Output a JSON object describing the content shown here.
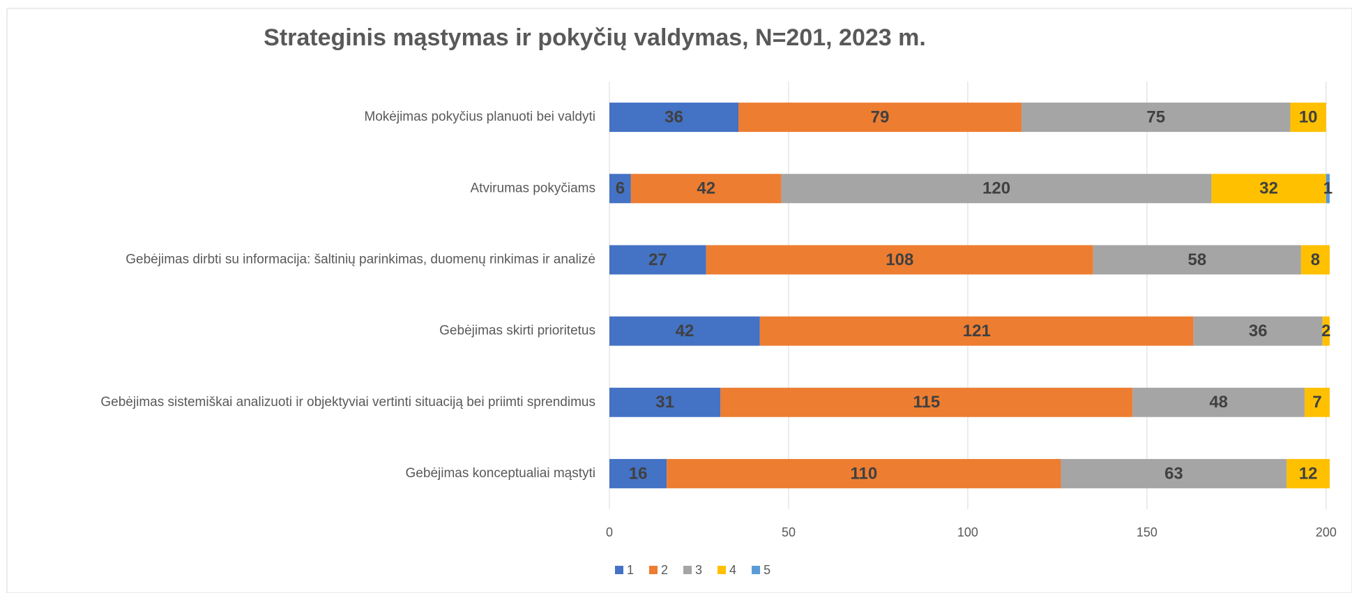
{
  "chart_data": {
    "type": "stacked_barh",
    "title": "Strateginis mąstymas ir pokyčių valdymas, N=201, 2023 m.",
    "categories": [
      "Mokėjimas pokyčius planuoti bei valdyti",
      "Atvirumas pokyčiams",
      "Gebėjimas dirbti su informacija: šaltinių parinkimas, duomenų rinkimas ir analizė",
      "Gebėjimas skirti prioritetus",
      "Gebėjimas sistemiškai analizuoti ir objektyviai vertinti situaciją bei priimti sprendimus",
      "Gebėjimas konceptualiai mąstyti"
    ],
    "series": [
      {
        "name": "1",
        "color": "#4472c4",
        "values": [
          36,
          6,
          27,
          42,
          31,
          16
        ]
      },
      {
        "name": "2",
        "color": "#ed7d31",
        "values": [
          79,
          42,
          108,
          121,
          115,
          110
        ]
      },
      {
        "name": "3",
        "color": "#a5a5a5",
        "values": [
          75,
          120,
          58,
          36,
          48,
          63
        ]
      },
      {
        "name": "4",
        "color": "#ffc000",
        "values": [
          10,
          32,
          8,
          2,
          7,
          12
        ]
      },
      {
        "name": "5",
        "color": "#5b9bd5",
        "values": [
          null,
          1,
          null,
          null,
          null,
          null
        ]
      }
    ],
    "xlim": [
      0,
      201
    ],
    "xticks": [
      0,
      50,
      100,
      150,
      200
    ],
    "grid": true,
    "legend": "bottom"
  }
}
